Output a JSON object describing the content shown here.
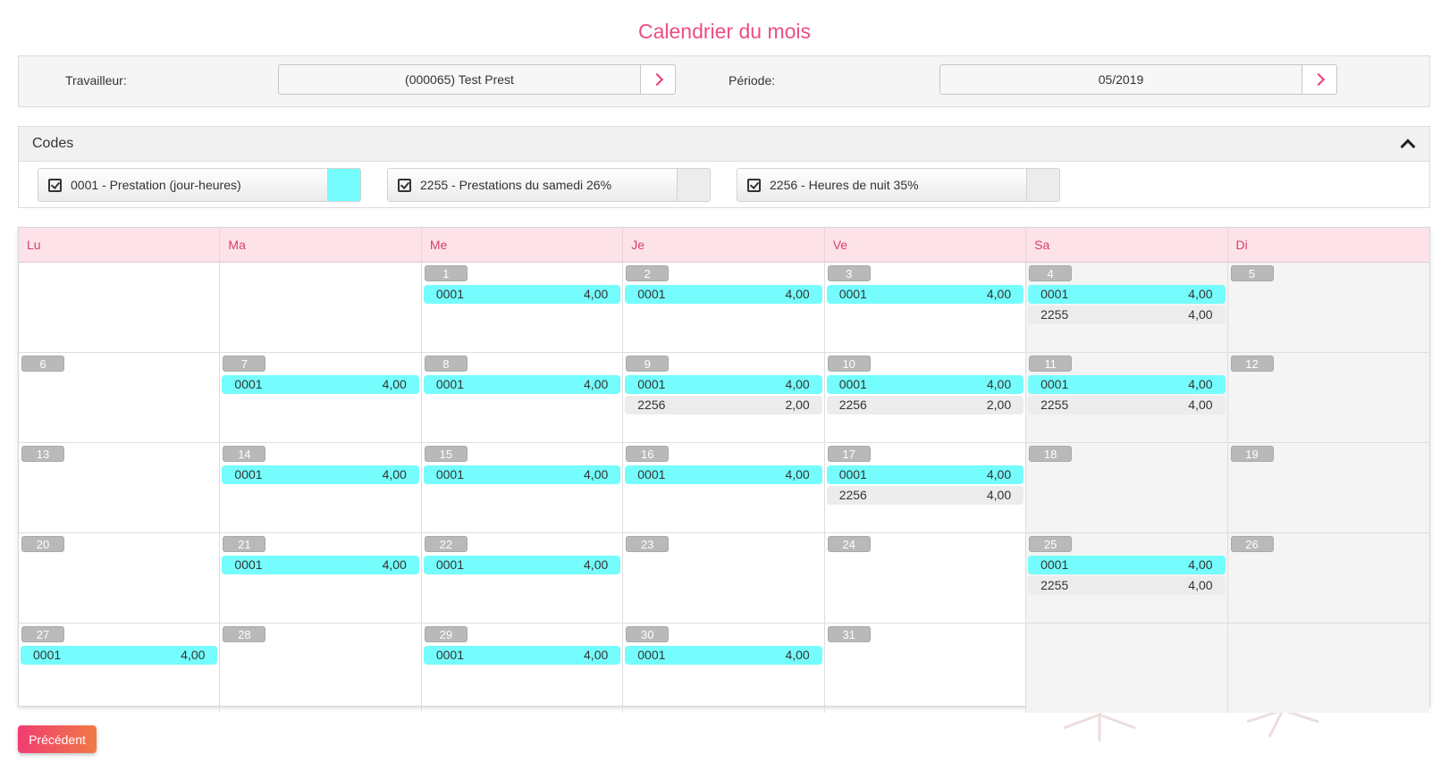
{
  "page": {
    "title": "Calendrier du mois"
  },
  "filters": {
    "worker_label": "Travailleur:",
    "worker_value": "(000065) Test Prest",
    "period_label": "Période:",
    "period_value": "05/2019"
  },
  "codes": {
    "title": "Codes",
    "items": [
      {
        "label": "0001 - Prestation (jour-heures)",
        "color": "#74fdfc"
      },
      {
        "label": "2255 - Prestations du samedi 26%",
        "color": "#ececec"
      },
      {
        "label": "2256 - Heures de nuit 35%",
        "color": "#ececec"
      }
    ]
  },
  "calendar": {
    "day_headers": [
      "Lu",
      "Ma",
      "Me",
      "Je",
      "Ve",
      "Sa",
      "Di"
    ],
    "weeks": [
      [
        {
          "day": "",
          "entries": []
        },
        {
          "day": "",
          "entries": []
        },
        {
          "day": "1",
          "entries": [
            {
              "code": "0001",
              "value": "4,00"
            }
          ]
        },
        {
          "day": "2",
          "entries": [
            {
              "code": "0001",
              "value": "4,00"
            }
          ]
        },
        {
          "day": "3",
          "entries": [
            {
              "code": "0001",
              "value": "4,00"
            }
          ]
        },
        {
          "day": "4",
          "entries": [
            {
              "code": "0001",
              "value": "4,00"
            },
            {
              "code": "2255",
              "value": "4,00"
            }
          ]
        },
        {
          "day": "5",
          "entries": []
        }
      ],
      [
        {
          "day": "6",
          "entries": []
        },
        {
          "day": "7",
          "entries": [
            {
              "code": "0001",
              "value": "4,00"
            }
          ]
        },
        {
          "day": "8",
          "entries": [
            {
              "code": "0001",
              "value": "4,00"
            }
          ]
        },
        {
          "day": "9",
          "entries": [
            {
              "code": "0001",
              "value": "4,00"
            },
            {
              "code": "2256",
              "value": "2,00"
            }
          ]
        },
        {
          "day": "10",
          "entries": [
            {
              "code": "0001",
              "value": "4,00"
            },
            {
              "code": "2256",
              "value": "2,00"
            }
          ]
        },
        {
          "day": "11",
          "entries": [
            {
              "code": "0001",
              "value": "4,00"
            },
            {
              "code": "2255",
              "value": "4,00"
            }
          ]
        },
        {
          "day": "12",
          "entries": []
        }
      ],
      [
        {
          "day": "13",
          "entries": []
        },
        {
          "day": "14",
          "entries": [
            {
              "code": "0001",
              "value": "4,00"
            }
          ]
        },
        {
          "day": "15",
          "entries": [
            {
              "code": "0001",
              "value": "4,00"
            }
          ]
        },
        {
          "day": "16",
          "entries": [
            {
              "code": "0001",
              "value": "4,00"
            }
          ]
        },
        {
          "day": "17",
          "entries": [
            {
              "code": "0001",
              "value": "4,00"
            },
            {
              "code": "2256",
              "value": "4,00"
            }
          ]
        },
        {
          "day": "18",
          "entries": []
        },
        {
          "day": "19",
          "entries": []
        }
      ],
      [
        {
          "day": "20",
          "entries": []
        },
        {
          "day": "21",
          "entries": [
            {
              "code": "0001",
              "value": "4,00"
            }
          ]
        },
        {
          "day": "22",
          "entries": [
            {
              "code": "0001",
              "value": "4,00"
            }
          ]
        },
        {
          "day": "23",
          "entries": []
        },
        {
          "day": "24",
          "entries": []
        },
        {
          "day": "25",
          "entries": [
            {
              "code": "0001",
              "value": "4,00"
            },
            {
              "code": "2255",
              "value": "4,00"
            }
          ]
        },
        {
          "day": "26",
          "entries": []
        }
      ],
      [
        {
          "day": "27",
          "entries": [
            {
              "code": "0001",
              "value": "4,00"
            }
          ]
        },
        {
          "day": "28",
          "entries": []
        },
        {
          "day": "29",
          "entries": [
            {
              "code": "0001",
              "value": "4,00"
            }
          ]
        },
        {
          "day": "30",
          "entries": [
            {
              "code": "0001",
              "value": "4,00"
            }
          ]
        },
        {
          "day": "31",
          "entries": []
        },
        {
          "day": "",
          "entries": []
        },
        {
          "day": "",
          "entries": []
        }
      ]
    ]
  },
  "actions": {
    "previous_label": "Précédent"
  },
  "colors": {
    "accent": "#ec4e7f",
    "code_0001": "#74fdfc",
    "code_other": "#ececec",
    "header_bg": "#fde3e9"
  }
}
